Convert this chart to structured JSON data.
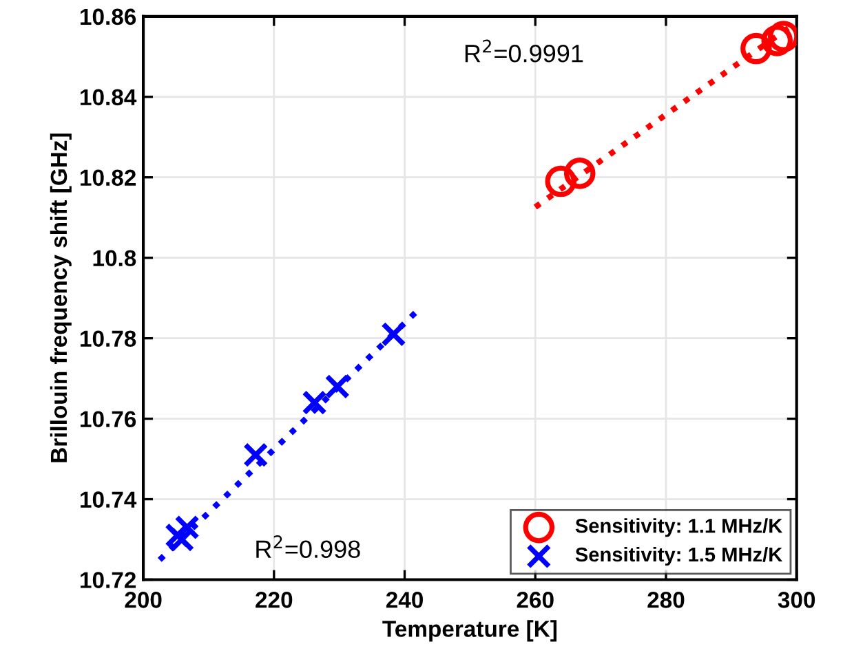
{
  "chart_data": {
    "type": "scatter",
    "xlabel": "Temperature [K]",
    "ylabel": "Brillouin frequency shift [GHz]",
    "xlim": [
      200,
      300
    ],
    "xticks": [
      200,
      220,
      240,
      260,
      280,
      300
    ],
    "ylim": [
      10.72,
      10.86
    ],
    "yticks": [
      10.72,
      10.74,
      10.76,
      10.78,
      10.8,
      10.82,
      10.84,
      10.86
    ],
    "grid": true,
    "legend": "bottom right",
    "annotations": [
      "R$^{2}$=0.9991",
      "R$^{2}$=0.998"
    ],
    "series": [
      {
        "name": "Sensitivity: 1.1 MHz/K",
        "marker": "circle",
        "color": "#ff0000",
        "x": [
          263.9,
          266.8,
          293.8,
          297,
          298
        ],
        "values": [
          10.819,
          10.821,
          10.852,
          10.854,
          10.855
        ]
      },
      {
        "name": "Sensitivity: 1.5 MHz/K",
        "marker": "cross",
        "color": "#0000ff",
        "x": [
          205.2,
          205.9,
          206.7,
          217.2,
          226.2,
          229.7,
          238.3
        ],
        "values": [
          10.731,
          10.73,
          10.733,
          10.751,
          10.764,
          10.768,
          10.781
        ]
      },
      {
        "type": "line",
        "line_style": "dotted",
        "color": "#ff0000",
        "x": [
          260,
          299.5
        ],
        "values": [
          10.8126,
          10.858
        ]
      },
      {
        "type": "line",
        "line_style": "dotted",
        "color": "#0000ff",
        "x": [
          202.5,
          242.5
        ],
        "values": [
          10.7249,
          10.7877
        ]
      }
    ]
  }
}
